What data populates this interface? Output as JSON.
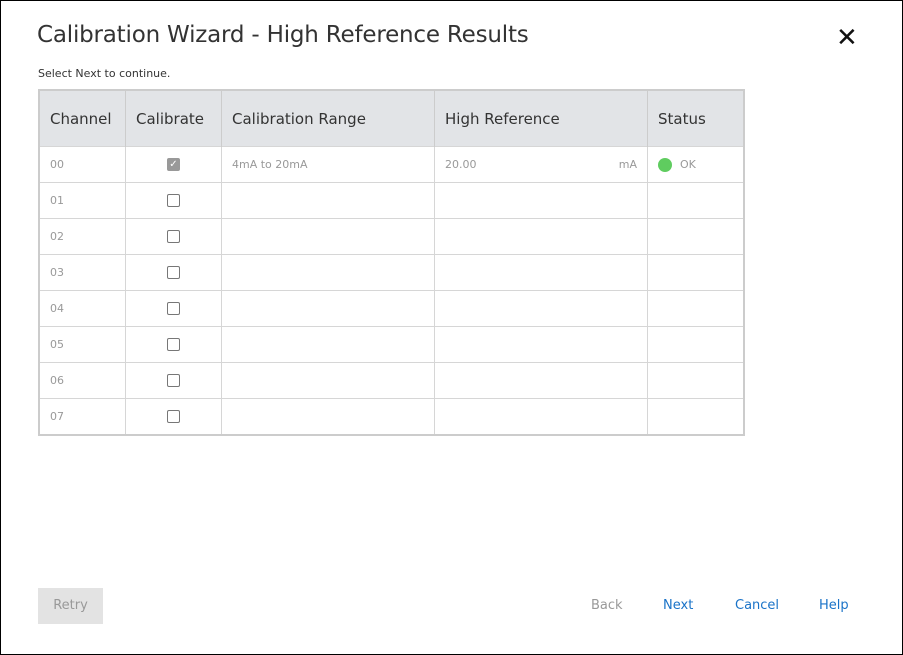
{
  "dialog": {
    "title": "Calibration Wizard -  High Reference Results",
    "instruction": "Select Next to continue."
  },
  "table": {
    "headers": [
      "Channel",
      "Calibrate",
      "Calibration Range",
      "High Reference",
      "Status"
    ],
    "rows": [
      {
        "channel": "00",
        "calibrate": true,
        "range": "4mA to 20mA",
        "high_reference": "20.00",
        "unit": "mA",
        "status": "OK",
        "status_color": "#5fcc5f"
      },
      {
        "channel": "01",
        "calibrate": false,
        "range": "",
        "high_reference": "",
        "unit": "",
        "status": ""
      },
      {
        "channel": "02",
        "calibrate": false,
        "range": "",
        "high_reference": "",
        "unit": "",
        "status": ""
      },
      {
        "channel": "03",
        "calibrate": false,
        "range": "",
        "high_reference": "",
        "unit": "",
        "status": ""
      },
      {
        "channel": "04",
        "calibrate": false,
        "range": "",
        "high_reference": "",
        "unit": "",
        "status": ""
      },
      {
        "channel": "05",
        "calibrate": false,
        "range": "",
        "high_reference": "",
        "unit": "",
        "status": ""
      },
      {
        "channel": "06",
        "calibrate": false,
        "range": "",
        "high_reference": "",
        "unit": "",
        "status": ""
      },
      {
        "channel": "07",
        "calibrate": false,
        "range": "",
        "high_reference": "",
        "unit": "",
        "status": ""
      }
    ]
  },
  "footer": {
    "retry": "Retry",
    "back": "Back",
    "next": "Next",
    "cancel": "Cancel",
    "help": "Help"
  }
}
